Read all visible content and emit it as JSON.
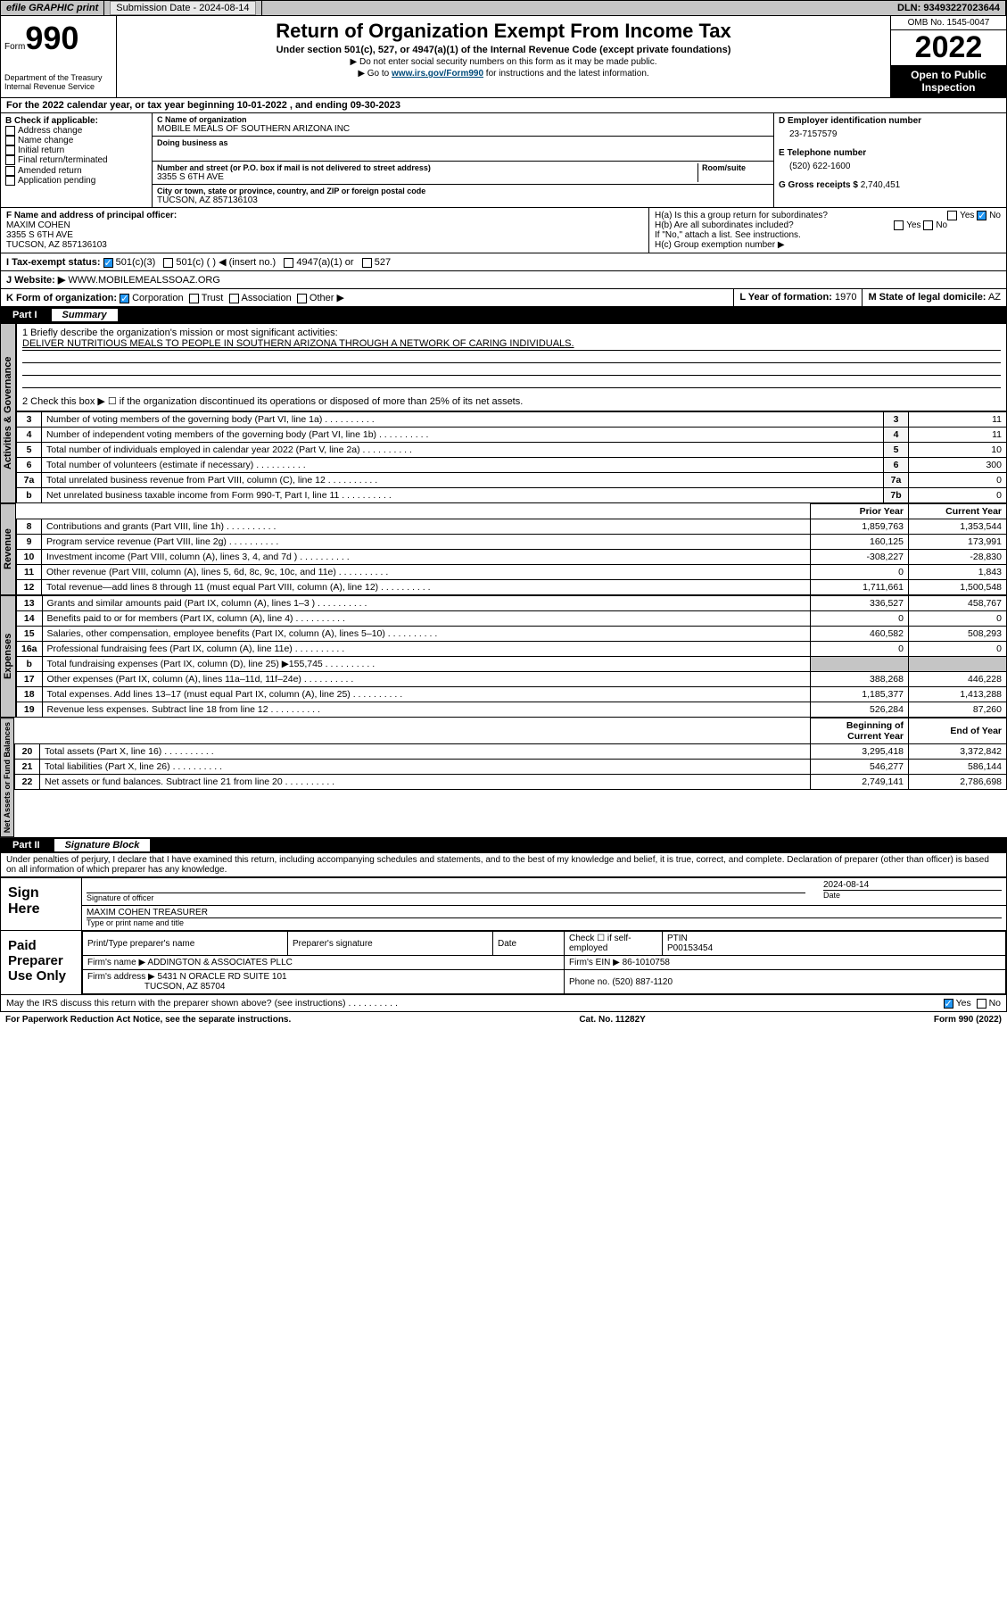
{
  "topbar": {
    "efile": "efile GRAPHIC print",
    "submission_label": "Submission Date - 2024-08-14",
    "dln": "DLN: 93493227023644"
  },
  "header": {
    "form_label": "Form",
    "form_number": "990",
    "title": "Return of Organization Exempt From Income Tax",
    "subtitle": "Under section 501(c), 527, or 4947(a)(1) of the Internal Revenue Code (except private foundations)",
    "note1": "▶ Do not enter social security numbers on this form as it may be made public.",
    "note2_pre": "▶ Go to ",
    "note2_link": "www.irs.gov/Form990",
    "note2_post": " for instructions and the latest information.",
    "omb": "OMB No. 1545-0047",
    "year": "2022",
    "open": "Open to Public Inspection",
    "dept": "Department of the Treasury Internal Revenue Service"
  },
  "period": "For the 2022 calendar year, or tax year beginning 10-01-2022  , and ending 09-30-2023",
  "boxB": {
    "label": "B Check if applicable:",
    "opts": [
      "Address change",
      "Name change",
      "Initial return",
      "Final return/terminated",
      "Amended return",
      "Application pending"
    ]
  },
  "boxC": {
    "name_lbl": "C Name of organization",
    "name": "MOBILE MEALS OF SOUTHERN ARIZONA INC",
    "dba_lbl": "Doing business as",
    "addr_lbl": "Number and street (or P.O. box if mail is not delivered to street address)",
    "room_lbl": "Room/suite",
    "addr": "3355 S 6TH AVE",
    "city_lbl": "City or town, state or province, country, and ZIP or foreign postal code",
    "city": "TUCSON, AZ  857136103"
  },
  "boxD": {
    "lbl": "D Employer identification number",
    "val": "23-7157579"
  },
  "boxE": {
    "lbl": "E Telephone number",
    "val": "(520) 622-1600"
  },
  "boxG": {
    "lbl": "G Gross receipts $",
    "val": "2,740,451"
  },
  "boxF": {
    "lbl": "F Name and address of principal officer:",
    "name": "MAXIM COHEN",
    "addr1": "3355 S 6TH AVE",
    "addr2": "TUCSON, AZ  857136103"
  },
  "boxH": {
    "a": "H(a)  Is this a group return for subordinates?",
    "ans_a": "No",
    "b": "H(b)  Are all subordinates included?",
    "b_note": "If \"No,\" attach a list. See instructions.",
    "c": "H(c)  Group exemption number ▶"
  },
  "boxI": {
    "lbl": "I   Tax-exempt status:",
    "opts": [
      "501(c)(3)",
      "501(c) (  ) ◀ (insert no.)",
      "4947(a)(1) or",
      "527"
    ]
  },
  "boxJ": {
    "lbl": "J   Website: ▶",
    "val": "WWW.MOBILEMEALSSOAZ.ORG"
  },
  "boxK": {
    "lbl": "K Form of organization:",
    "opts": [
      "Corporation",
      "Trust",
      "Association",
      "Other ▶"
    ]
  },
  "boxL": {
    "lbl": "L Year of formation:",
    "val": "1970"
  },
  "boxM": {
    "lbl": "M State of legal domicile:",
    "val": "AZ"
  },
  "partI": {
    "label": "Part I",
    "title": "Summary",
    "mission_lbl": "1  Briefly describe the organization's mission or most significant activities:",
    "mission": "DELIVER NUTRITIOUS MEALS TO PEOPLE IN SOUTHERN ARIZONA THROUGH A NETWORK OF CARING INDIVIDUALS.",
    "line2": "2  Check this box ▶ ☐  if the organization discontinued its operations or disposed of more than 25% of its net assets.",
    "gov_rows": [
      {
        "n": "3",
        "d": "Number of voting members of the governing body (Part VI, line 1a)",
        "box": "3",
        "v": "11"
      },
      {
        "n": "4",
        "d": "Number of independent voting members of the governing body (Part VI, line 1b)",
        "box": "4",
        "v": "11"
      },
      {
        "n": "5",
        "d": "Total number of individuals employed in calendar year 2022 (Part V, line 2a)",
        "box": "5",
        "v": "10"
      },
      {
        "n": "6",
        "d": "Total number of volunteers (estimate if necessary)",
        "box": "6",
        "v": "300"
      },
      {
        "n": "7a",
        "d": "Total unrelated business revenue from Part VIII, column (C), line 12",
        "box": "7a",
        "v": "0"
      },
      {
        "n": "b",
        "d": "Net unrelated business taxable income from Form 990-T, Part I, line 11",
        "box": "7b",
        "v": "0"
      }
    ],
    "col_prior": "Prior Year",
    "col_current": "Current Year",
    "rev_rows": [
      {
        "n": "8",
        "d": "Contributions and grants (Part VIII, line 1h)",
        "p": "1,859,763",
        "c": "1,353,544"
      },
      {
        "n": "9",
        "d": "Program service revenue (Part VIII, line 2g)",
        "p": "160,125",
        "c": "173,991"
      },
      {
        "n": "10",
        "d": "Investment income (Part VIII, column (A), lines 3, 4, and 7d )",
        "p": "-308,227",
        "c": "-28,830"
      },
      {
        "n": "11",
        "d": "Other revenue (Part VIII, column (A), lines 5, 6d, 8c, 9c, 10c, and 11e)",
        "p": "0",
        "c": "1,843"
      },
      {
        "n": "12",
        "d": "Total revenue—add lines 8 through 11 (must equal Part VIII, column (A), line 12)",
        "p": "1,711,661",
        "c": "1,500,548"
      }
    ],
    "exp_rows": [
      {
        "n": "13",
        "d": "Grants and similar amounts paid (Part IX, column (A), lines 1–3 )",
        "p": "336,527",
        "c": "458,767"
      },
      {
        "n": "14",
        "d": "Benefits paid to or for members (Part IX, column (A), line 4)",
        "p": "0",
        "c": "0"
      },
      {
        "n": "15",
        "d": "Salaries, other compensation, employee benefits (Part IX, column (A), lines 5–10)",
        "p": "460,582",
        "c": "508,293"
      },
      {
        "n": "16a",
        "d": "Professional fundraising fees (Part IX, column (A), line 11e)",
        "p": "0",
        "c": "0"
      },
      {
        "n": "b",
        "d": "Total fundraising expenses (Part IX, column (D), line 25) ▶155,745",
        "p": "",
        "c": ""
      },
      {
        "n": "17",
        "d": "Other expenses (Part IX, column (A), lines 11a–11d, 11f–24e)",
        "p": "388,268",
        "c": "446,228"
      },
      {
        "n": "18",
        "d": "Total expenses. Add lines 13–17 (must equal Part IX, column (A), line 25)",
        "p": "1,185,377",
        "c": "1,413,288"
      },
      {
        "n": "19",
        "d": "Revenue less expenses. Subtract line 18 from line 12",
        "p": "526,284",
        "c": "87,260"
      }
    ],
    "col_begin": "Beginning of Current Year",
    "col_end": "End of Year",
    "net_rows": [
      {
        "n": "20",
        "d": "Total assets (Part X, line 16)",
        "p": "3,295,418",
        "c": "3,372,842"
      },
      {
        "n": "21",
        "d": "Total liabilities (Part X, line 26)",
        "p": "546,277",
        "c": "586,144"
      },
      {
        "n": "22",
        "d": "Net assets or fund balances. Subtract line 21 from line 20",
        "p": "2,749,141",
        "c": "2,786,698"
      }
    ]
  },
  "sidelabels": {
    "gov": "Activities & Governance",
    "rev": "Revenue",
    "exp": "Expenses",
    "net": "Net Assets or Fund Balances"
  },
  "partII": {
    "label": "Part II",
    "title": "Signature Block",
    "declaration": "Under penalties of perjury, I declare that I have examined this return, including accompanying schedules and statements, and to the best of my knowledge and belief, it is true, correct, and complete. Declaration of preparer (other than officer) is based on all information of which preparer has any knowledge.",
    "sign_here": "Sign Here",
    "sig_officer": "Signature of officer",
    "sig_date": "2024-08-14",
    "date_lbl": "Date",
    "officer_name": "MAXIM COHEN TREASURER",
    "type_name_lbl": "Type or print name and title",
    "paid": "Paid Preparer Use Only",
    "prep_cols": [
      "Print/Type preparer's name",
      "Preparer's signature",
      "Date"
    ],
    "check_self": "Check ☐ if self-employed",
    "ptin_lbl": "PTIN",
    "ptin": "P00153454",
    "firm_name_lbl": "Firm's name   ▶",
    "firm_name": "ADDINGTON & ASSOCIATES PLLC",
    "firm_ein_lbl": "Firm's EIN ▶",
    "firm_ein": "86-1010758",
    "firm_addr_lbl": "Firm's address ▶",
    "firm_addr": "5431 N ORACLE RD SUITE 101",
    "firm_city": "TUCSON, AZ  85704",
    "phone_lbl": "Phone no.",
    "phone": "(520) 887-1120",
    "may_irs": "May the IRS discuss this return with the preparer shown above? (see instructions)"
  },
  "footer": {
    "left": "For Paperwork Reduction Act Notice, see the separate instructions.",
    "mid": "Cat. No. 11282Y",
    "right": "Form 990 (2022)"
  }
}
